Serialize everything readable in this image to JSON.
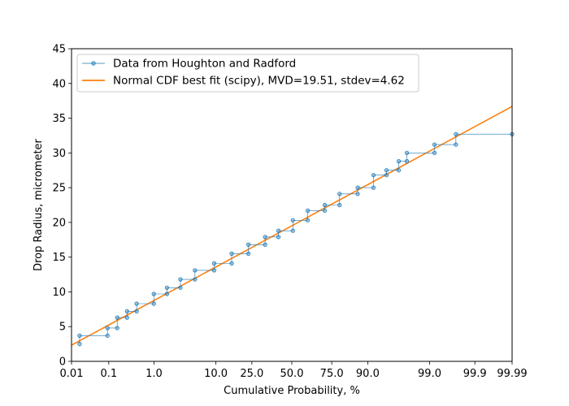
{
  "chart_data": {
    "type": "line",
    "xlabel": "Cumulative Probability, %",
    "ylabel": "Drop Radius, micrometer",
    "x_scale": "probability (normal quantile)",
    "xlim": [
      0.01,
      99.99
    ],
    "ylim": [
      0,
      45
    ],
    "x_ticks": [
      0.01,
      0.1,
      1.0,
      10.0,
      25.0,
      50.0,
      75.0,
      90.0,
      99.0,
      99.9,
      99.99
    ],
    "x_tick_labels": [
      "0.01",
      "0.1",
      "1.0",
      "10.0",
      "25.0",
      "50.0",
      "75.0",
      "90.0",
      "99.0",
      "99.9",
      "99.99"
    ],
    "y_ticks": [
      0,
      5,
      10,
      15,
      20,
      25,
      30,
      35,
      40,
      45
    ],
    "y_tick_labels": [
      "0",
      "5",
      "10",
      "15",
      "20",
      "25",
      "30",
      "35",
      "40",
      "45"
    ],
    "grid": false,
    "legend_position": "top-left",
    "series": [
      {
        "name": "Data from Houghton and Radford",
        "style": "steps with circle markers",
        "color": "#1f77b4",
        "points": [
          [
            0.017,
            2.5
          ],
          [
            0.017,
            3.7
          ],
          [
            0.093,
            3.7
          ],
          [
            0.093,
            4.8
          ],
          [
            0.16,
            4.8
          ],
          [
            0.16,
            6.3
          ],
          [
            0.27,
            6.3
          ],
          [
            0.27,
            7.2
          ],
          [
            0.44,
            7.2
          ],
          [
            0.44,
            8.3
          ],
          [
            0.99,
            8.3
          ],
          [
            0.99,
            9.7
          ],
          [
            1.75,
            9.7
          ],
          [
            1.75,
            10.6
          ],
          [
            3.0,
            10.6
          ],
          [
            3.0,
            11.8
          ],
          [
            5.1,
            11.8
          ],
          [
            5.1,
            13.1
          ],
          [
            9.5,
            13.1
          ],
          [
            9.5,
            14.1
          ],
          [
            15.5,
            14.1
          ],
          [
            15.5,
            15.5
          ],
          [
            23.2,
            15.5
          ],
          [
            23.2,
            16.8
          ],
          [
            32.6,
            16.8
          ],
          [
            32.6,
            17.9
          ],
          [
            41.1,
            17.9
          ],
          [
            41.1,
            18.8
          ],
          [
            50.7,
            18.8
          ],
          [
            50.7,
            20.3
          ],
          [
            60.6,
            20.3
          ],
          [
            60.6,
            21.7
          ],
          [
            71.1,
            21.7
          ],
          [
            71.1,
            22.5
          ],
          [
            79.0,
            22.5
          ],
          [
            79.0,
            24.1
          ],
          [
            86.7,
            24.1
          ],
          [
            86.7,
            25.0
          ],
          [
            91.6,
            25.0
          ],
          [
            91.6,
            26.8
          ],
          [
            94.5,
            26.8
          ],
          [
            94.5,
            27.5
          ],
          [
            96.45,
            27.5
          ],
          [
            96.45,
            28.8
          ],
          [
            97.4,
            28.8
          ],
          [
            97.4,
            30.0
          ],
          [
            99.2,
            30.0
          ],
          [
            99.2,
            31.2
          ],
          [
            99.72,
            31.2
          ],
          [
            99.72,
            32.7
          ],
          [
            99.99,
            32.7
          ]
        ]
      },
      {
        "name": "Normal CDF best fit (scipy), MVD=19.51, stdev=4.62",
        "style": "line",
        "color": "#ff7f0e",
        "mean": 19.51,
        "stdev": 4.62
      }
    ]
  }
}
